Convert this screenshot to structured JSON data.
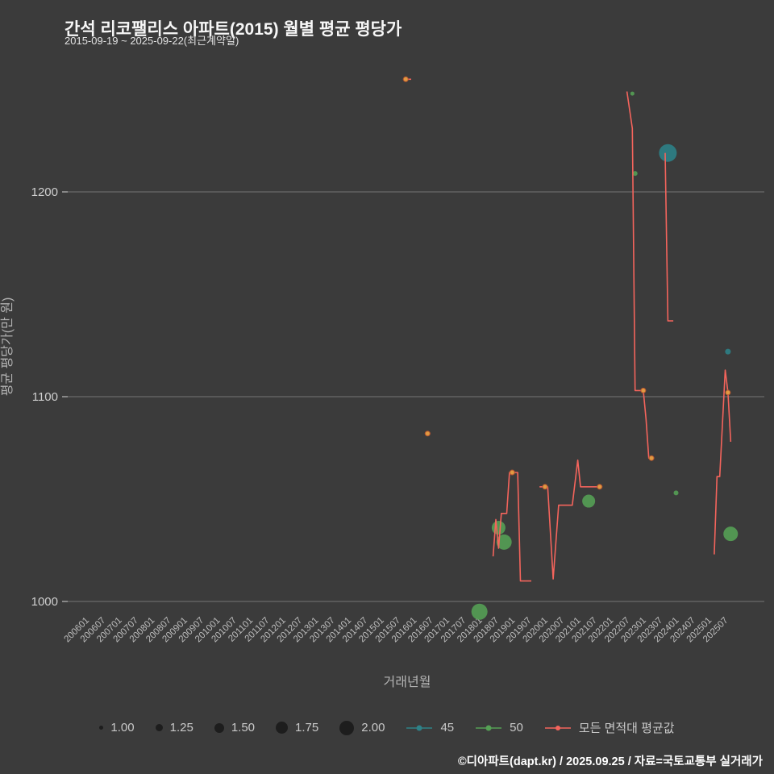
{
  "title": "간석 리코팰리스 아파트(2015) 월별 평균 평당가",
  "subtitle": "2015-09-19 ~ 2025-09-22(최근계약일)",
  "footer": "©디아파트(dapt.kr) / 2025.09.25 / 자료=국토교통부 실거래가",
  "colors": {
    "background": "#3b3b3b",
    "grid": "#8f8f8f",
    "avg_line": "#f4645c",
    "marker": "#e09a42",
    "series_45": "#2e8187",
    "series_50": "#55a055",
    "tick_text": "#bdbdbd",
    "axis_text": "#b3b3b3"
  },
  "chart_data": {
    "type": "line",
    "title": "간석 리코팰리스 아파트(2015) 월별 평균 평당가",
    "xlabel": "거래년월",
    "ylabel": "평균 평당가(만 원)",
    "ylim": [
      975,
      1265
    ],
    "yticks": [
      1000,
      1100,
      1200
    ],
    "xticks": [
      "200601",
      "200607",
      "200701",
      "200707",
      "200801",
      "200807",
      "200901",
      "200907",
      "201001",
      "201007",
      "201101",
      "201107",
      "201201",
      "201207",
      "201301",
      "201307",
      "201401",
      "201407",
      "201501",
      "201507",
      "201601",
      "201607",
      "201701",
      "201707",
      "201801",
      "201807",
      "201901",
      "201907",
      "202001",
      "202007",
      "202101",
      "202107",
      "202201",
      "202207",
      "202301",
      "202307",
      "202401",
      "202407",
      "202501",
      "202507"
    ],
    "grid": true,
    "legend_position": "bottom",
    "series": [
      {
        "name": "모든 면적대 평균값",
        "type": "line",
        "color": "#f4645c",
        "segments": [
          [
            [
              "201509",
              1255
            ],
            [
              "201512",
              1255
            ]
          ],
          [
            [
              "201605",
              1082
            ],
            [
              "201607",
              1082
            ]
          ],
          [
            [
              "201806",
              1022
            ],
            [
              "201807",
              1040
            ],
            [
              "201808",
              1026
            ],
            [
              "201809",
              1043
            ],
            [
              "201811",
              1043
            ],
            [
              "201812",
              1063
            ],
            [
              "201903",
              1063
            ],
            [
              "201904",
              1010
            ],
            [
              "201908",
              1010
            ]
          ],
          [
            [
              "201911",
              1056
            ],
            [
              "202002",
              1056
            ],
            [
              "202004",
              1011
            ],
            [
              "202006",
              1047
            ],
            [
              "202011",
              1047
            ],
            [
              "202101",
              1069
            ],
            [
              "202102",
              1056
            ],
            [
              "202110",
              1056
            ]
          ],
          [
            [
              "202207",
              1249
            ],
            [
              "202209",
              1231
            ],
            [
              "202210",
              1103
            ],
            [
              "202301",
              1103
            ],
            [
              "202302",
              1089
            ],
            [
              "202303",
              1070
            ],
            [
              "202305",
              1070
            ]
          ],
          [
            [
              "202309",
              1219
            ],
            [
              "202310",
              1137
            ],
            [
              "202312",
              1137
            ]
          ],
          [
            [
              "202503",
              1023
            ],
            [
              "202504",
              1061
            ],
            [
              "202505",
              1061
            ],
            [
              "202507",
              1113
            ],
            [
              "202508",
              1102
            ],
            [
              "202509",
              1078
            ]
          ]
        ]
      },
      {
        "name": "45",
        "type": "scatter",
        "color": "#2e8187",
        "points": [
          {
            "x": "202310",
            "y": 1219,
            "size": 11
          },
          {
            "x": "202508",
            "y": 1122,
            "size": 3.5
          }
        ]
      },
      {
        "name": "50",
        "type": "scatter",
        "color": "#55a055",
        "points": [
          {
            "x": "201801",
            "y": 995,
            "size": 10
          },
          {
            "x": "201808",
            "y": 1036,
            "size": 8.5
          },
          {
            "x": "201810",
            "y": 1029,
            "size": 9.5
          },
          {
            "x": "202105",
            "y": 1049,
            "size": 8
          },
          {
            "x": "202209",
            "y": 1248,
            "size": 2.5
          },
          {
            "x": "202210",
            "y": 1209,
            "size": 3
          },
          {
            "x": "202401",
            "y": 1053,
            "size": 3
          },
          {
            "x": "202509",
            "y": 1033,
            "size": 9
          }
        ]
      }
    ],
    "markers": [
      [
        "201510",
        1255
      ],
      [
        "201606",
        1082
      ],
      [
        "201901",
        1063
      ],
      [
        "202001",
        1056
      ],
      [
        "202109",
        1056
      ],
      [
        "202301",
        1103
      ],
      [
        "202304",
        1070
      ],
      [
        "202508",
        1102
      ]
    ]
  },
  "legend": {
    "sizes": [
      {
        "label": "1.00",
        "r": 2.5
      },
      {
        "label": "1.25",
        "r": 4.5
      },
      {
        "label": "1.50",
        "r": 6
      },
      {
        "label": "1.75",
        "r": 7.5
      },
      {
        "label": "2.00",
        "r": 9
      }
    ],
    "series": [
      {
        "label": "45",
        "color": "#2e8187",
        "dot_r": 3.5
      },
      {
        "label": "50",
        "color": "#55a055",
        "dot_r": 3.5
      },
      {
        "label": "모든 면적대 평균값",
        "color": "#f4645c",
        "dot_r": 3
      }
    ]
  }
}
